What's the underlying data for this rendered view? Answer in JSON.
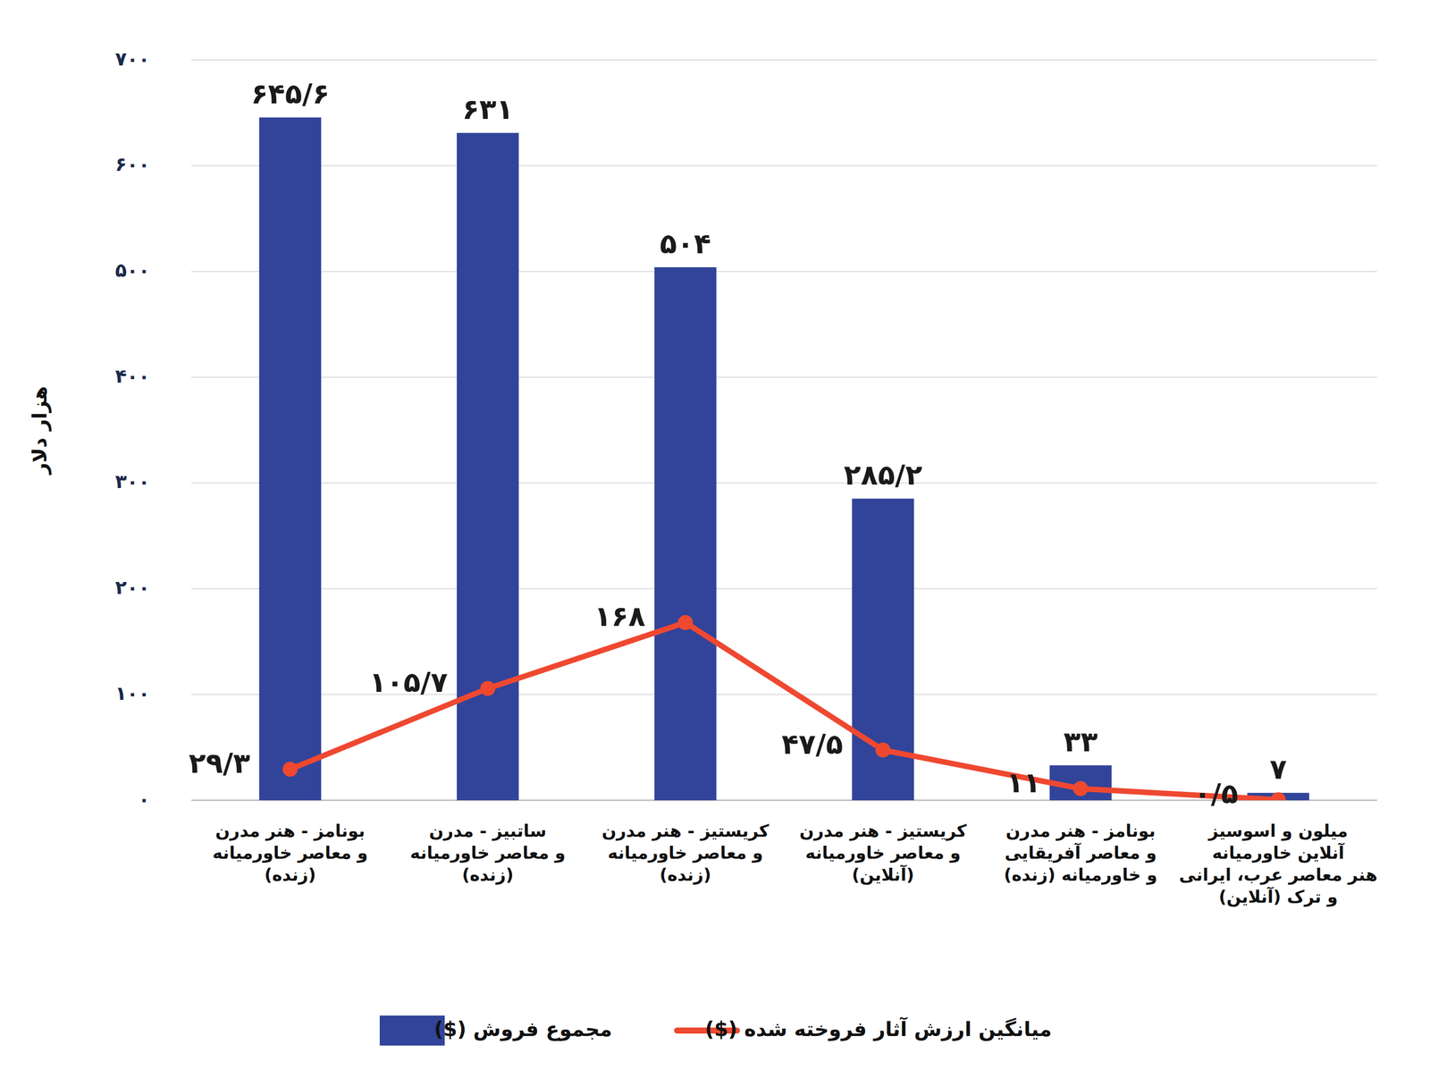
{
  "chart_data": {
    "type": "bar",
    "y_label": "هزار دلار",
    "categories": [
      "بونامز - هنر مدرن\nو معاصر خاورمیانه\n(زنده)",
      "ساتبیز - مدرن\nو معاصر خاورمیانه\n(زنده)",
      "کریستیز - هنر مدرن\nو معاصر خاورمیانه\n(زنده)",
      "کریستیز - هنر مدرن\nو معاصر خاورمیانه\n(آنلاین)",
      "بونامز - هنر مدرن\nو معاصر آفریقایی\nو خاورمیانه (زنده)",
      "میلون و اسوسیز\nآنلاین خاورمیانه\nهنر معاصر عرب، ایرانی\nو ترک (آنلاین)"
    ],
    "series": [
      {
        "name": "مجموع فروش ($)",
        "type": "bar",
        "color": "#31449a",
        "values": [
          645.6,
          631,
          504,
          285.2,
          33,
          7
        ],
        "value_labels": [
          "۶۴۵/۶",
          "۶۳۱",
          "۵۰۴",
          "۲۸۵/۲",
          "۳۳",
          "۷"
        ]
      },
      {
        "name": "میانگین ارزش آثار فروخته شده ($)",
        "type": "line",
        "color": "#ef4830",
        "marker": "circle",
        "values": [
          29.3,
          105.7,
          168,
          47.5,
          11,
          0.5
        ],
        "value_labels": [
          "۲۹/۳",
          "۱۰۵/۷",
          "۱۶۸",
          "۴۷/۵",
          "۱۱",
          "۰/۵"
        ]
      }
    ],
    "ylim": [
      0,
      700
    ],
    "yticks": [
      {
        "value": 0,
        "label": "۰"
      },
      {
        "value": 100,
        "label": "۱۰۰"
      },
      {
        "value": 200,
        "label": "۲۰۰"
      },
      {
        "value": 300,
        "label": "۳۰۰"
      },
      {
        "value": 400,
        "label": "۴۰۰"
      },
      {
        "value": 500,
        "label": "۵۰۰"
      },
      {
        "value": 600,
        "label": "۶۰۰"
      },
      {
        "value": 700,
        "label": "۷۰۰"
      }
    ],
    "grid": true,
    "data_labels": true,
    "legend": "bottom"
  }
}
